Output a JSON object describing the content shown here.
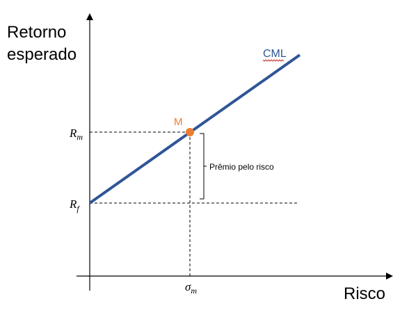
{
  "diagram": {
    "y_axis_title_line1": "Retorno",
    "y_axis_title_line2": "esperado",
    "x_axis_title": "Risco",
    "line_label": "CML",
    "point_label": "M",
    "rm_label_base": "R",
    "rm_label_sub": "m",
    "rf_label_base": "R",
    "rf_label_sub": "f",
    "sigma_label_base": "σ",
    "sigma_label_sub": "m",
    "bracket_label": "Prêmio pelo risco",
    "colors": {
      "line": "#2f5597",
      "point": "#ed7d31",
      "axis": "#000000",
      "squiggle": "#c00000"
    }
  }
}
